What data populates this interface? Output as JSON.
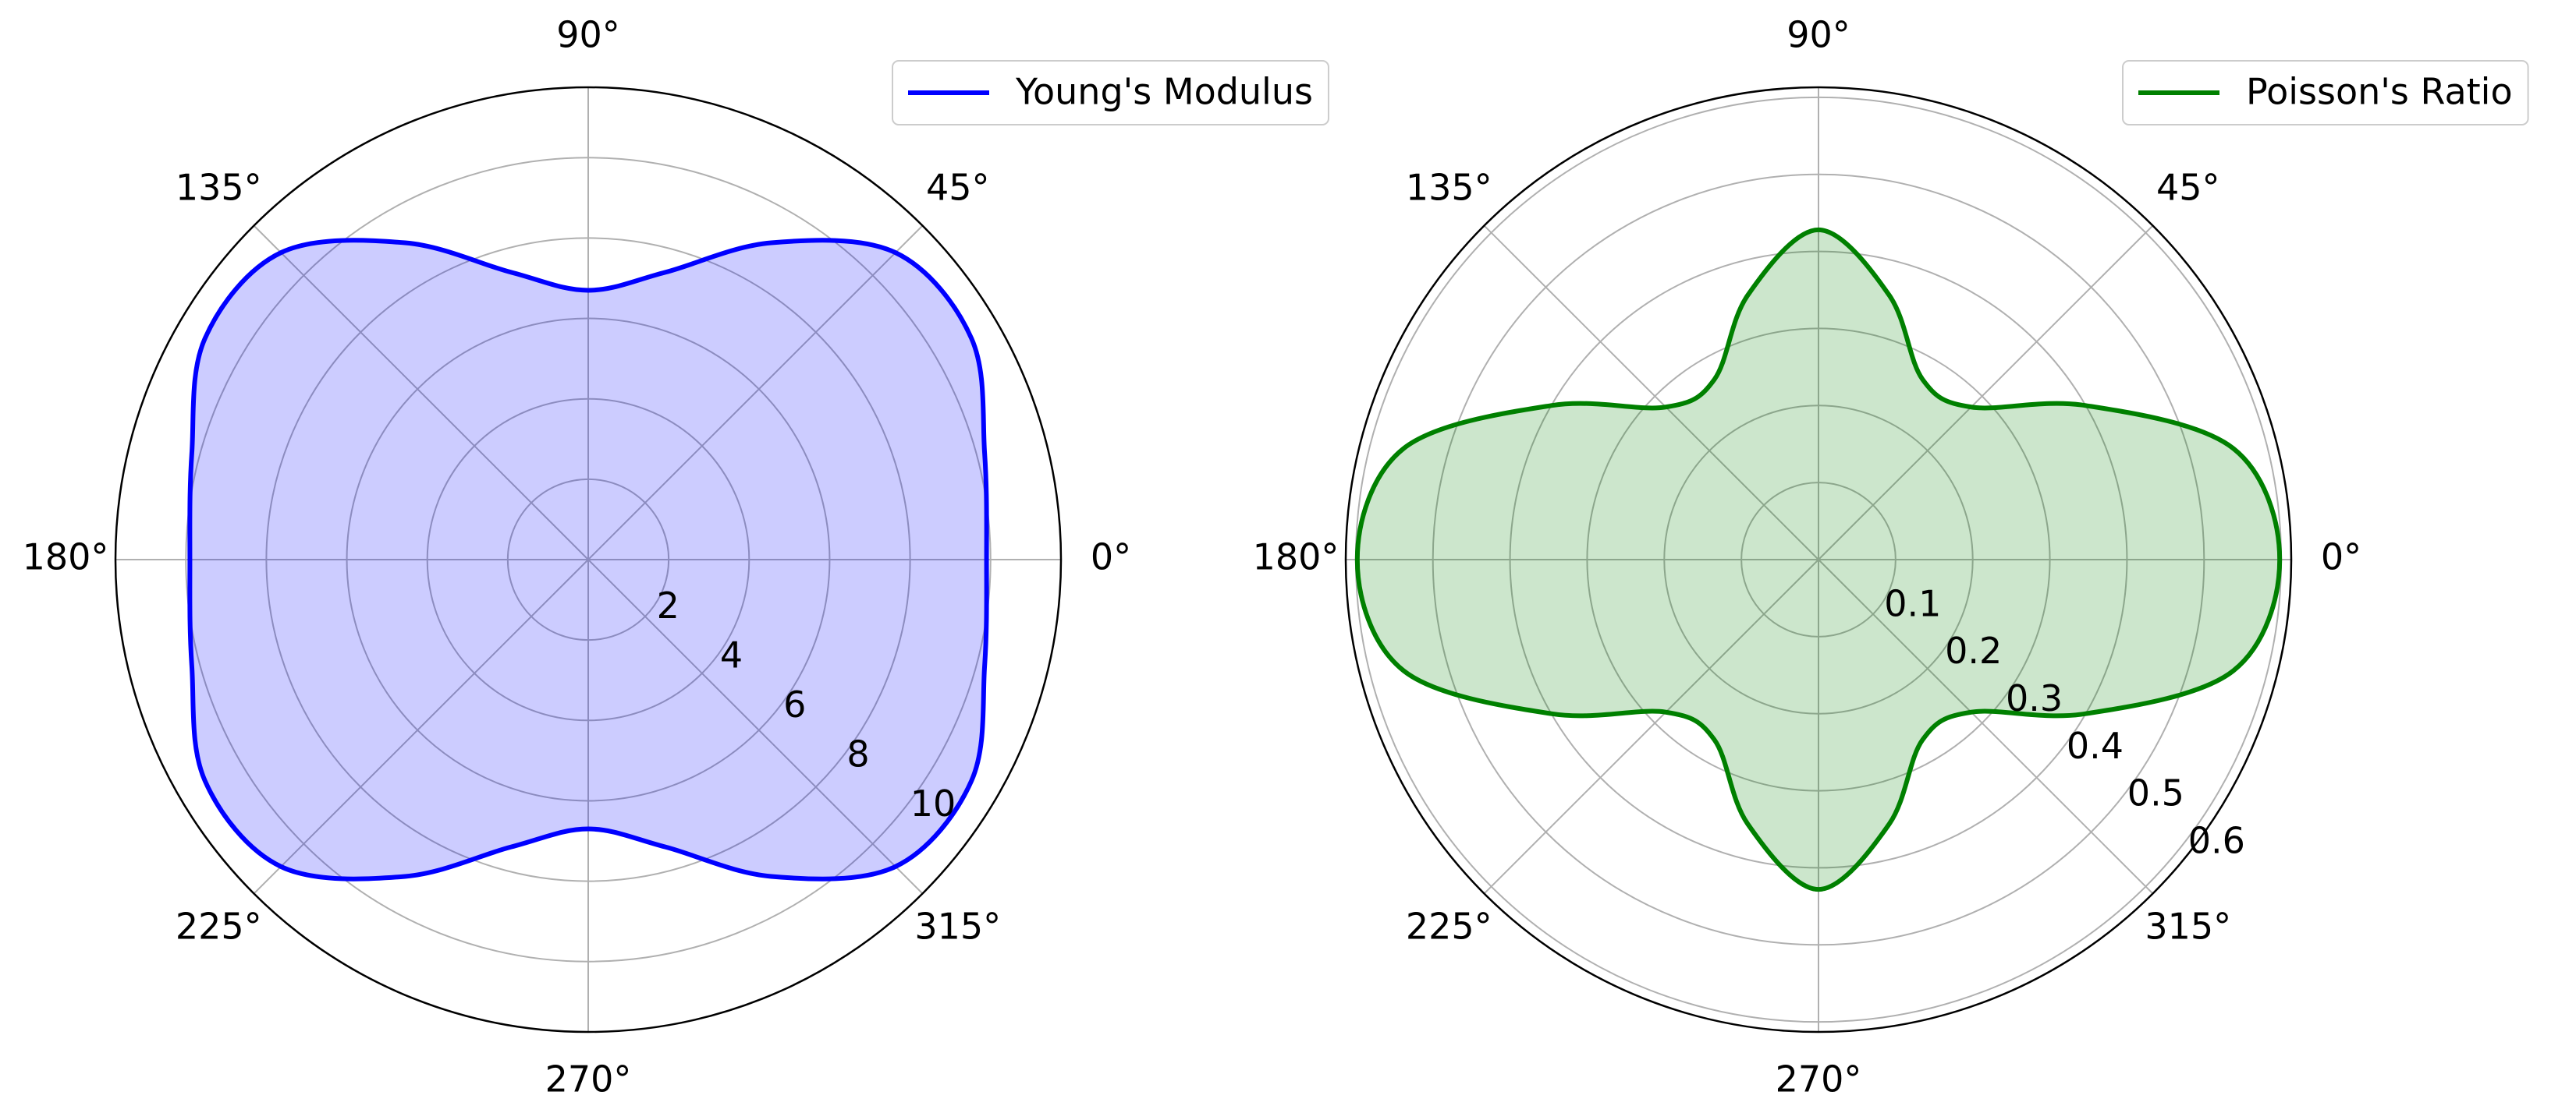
{
  "chart_data": [
    {
      "type": "polar",
      "x": [
        0,
        15,
        30,
        45,
        60,
        75,
        90,
        105,
        120,
        135,
        150,
        165,
        180,
        195,
        210,
        225,
        240,
        255,
        270,
        285,
        300,
        315,
        330,
        345
      ],
      "series": [
        {
          "name": "Young's Modulus",
          "color": "#0000ff",
          "values": [
            9.9,
            10.2,
            11.0,
            10.8,
            9.1,
            7.4,
            6.7,
            7.4,
            9.1,
            10.8,
            11.0,
            10.2,
            9.9,
            10.2,
            11.0,
            10.8,
            9.1,
            7.4,
            6.7,
            7.4,
            9.1,
            10.8,
            11.0,
            10.2
          ]
        }
      ],
      "ylim": [
        0,
        11.75
      ],
      "yticks": [
        2,
        4,
        6,
        8,
        10
      ],
      "xticks": [
        {
          "value": 0,
          "label": "0°"
        },
        {
          "value": 45,
          "label": "45°"
        },
        {
          "value": 90,
          "label": "90°"
        },
        {
          "value": 135,
          "label": "135°"
        },
        {
          "value": 180,
          "label": "180°"
        },
        {
          "value": 225,
          "label": "225°"
        },
        {
          "value": 270,
          "label": "270°"
        },
        {
          "value": 315,
          "label": "315°"
        }
      ],
      "grid": true,
      "fill": true,
      "legend": "upper right"
    },
    {
      "type": "polar",
      "x": [
        0,
        15,
        30,
        45,
        60,
        75,
        90,
        105,
        120,
        135,
        150,
        165,
        180,
        195,
        210,
        225,
        240,
        255,
        270,
        285,
        300,
        315,
        330,
        345
      ],
      "series": [
        {
          "name": "Poisson's Ratio",
          "color": "#008000",
          "values": [
            0.598,
            0.557,
            0.4,
            0.28,
            0.27,
            0.355,
            0.428,
            0.355,
            0.27,
            0.28,
            0.4,
            0.557,
            0.598,
            0.557,
            0.4,
            0.28,
            0.27,
            0.355,
            0.428,
            0.355,
            0.27,
            0.28,
            0.4,
            0.557
          ]
        }
      ],
      "ylim": [
        0,
        0.613
      ],
      "yticks": [
        0.1,
        0.2,
        0.3,
        0.4,
        0.5,
        0.6
      ],
      "xticks": [
        {
          "value": 0,
          "label": "0°"
        },
        {
          "value": 45,
          "label": "45°"
        },
        {
          "value": 90,
          "label": "90°"
        },
        {
          "value": 135,
          "label": "135°"
        },
        {
          "value": 180,
          "label": "180°"
        },
        {
          "value": 225,
          "label": "225°"
        },
        {
          "value": 270,
          "label": "270°"
        },
        {
          "value": 315,
          "label": "315°"
        }
      ],
      "grid": true,
      "fill": true,
      "legend": "upper right"
    }
  ]
}
